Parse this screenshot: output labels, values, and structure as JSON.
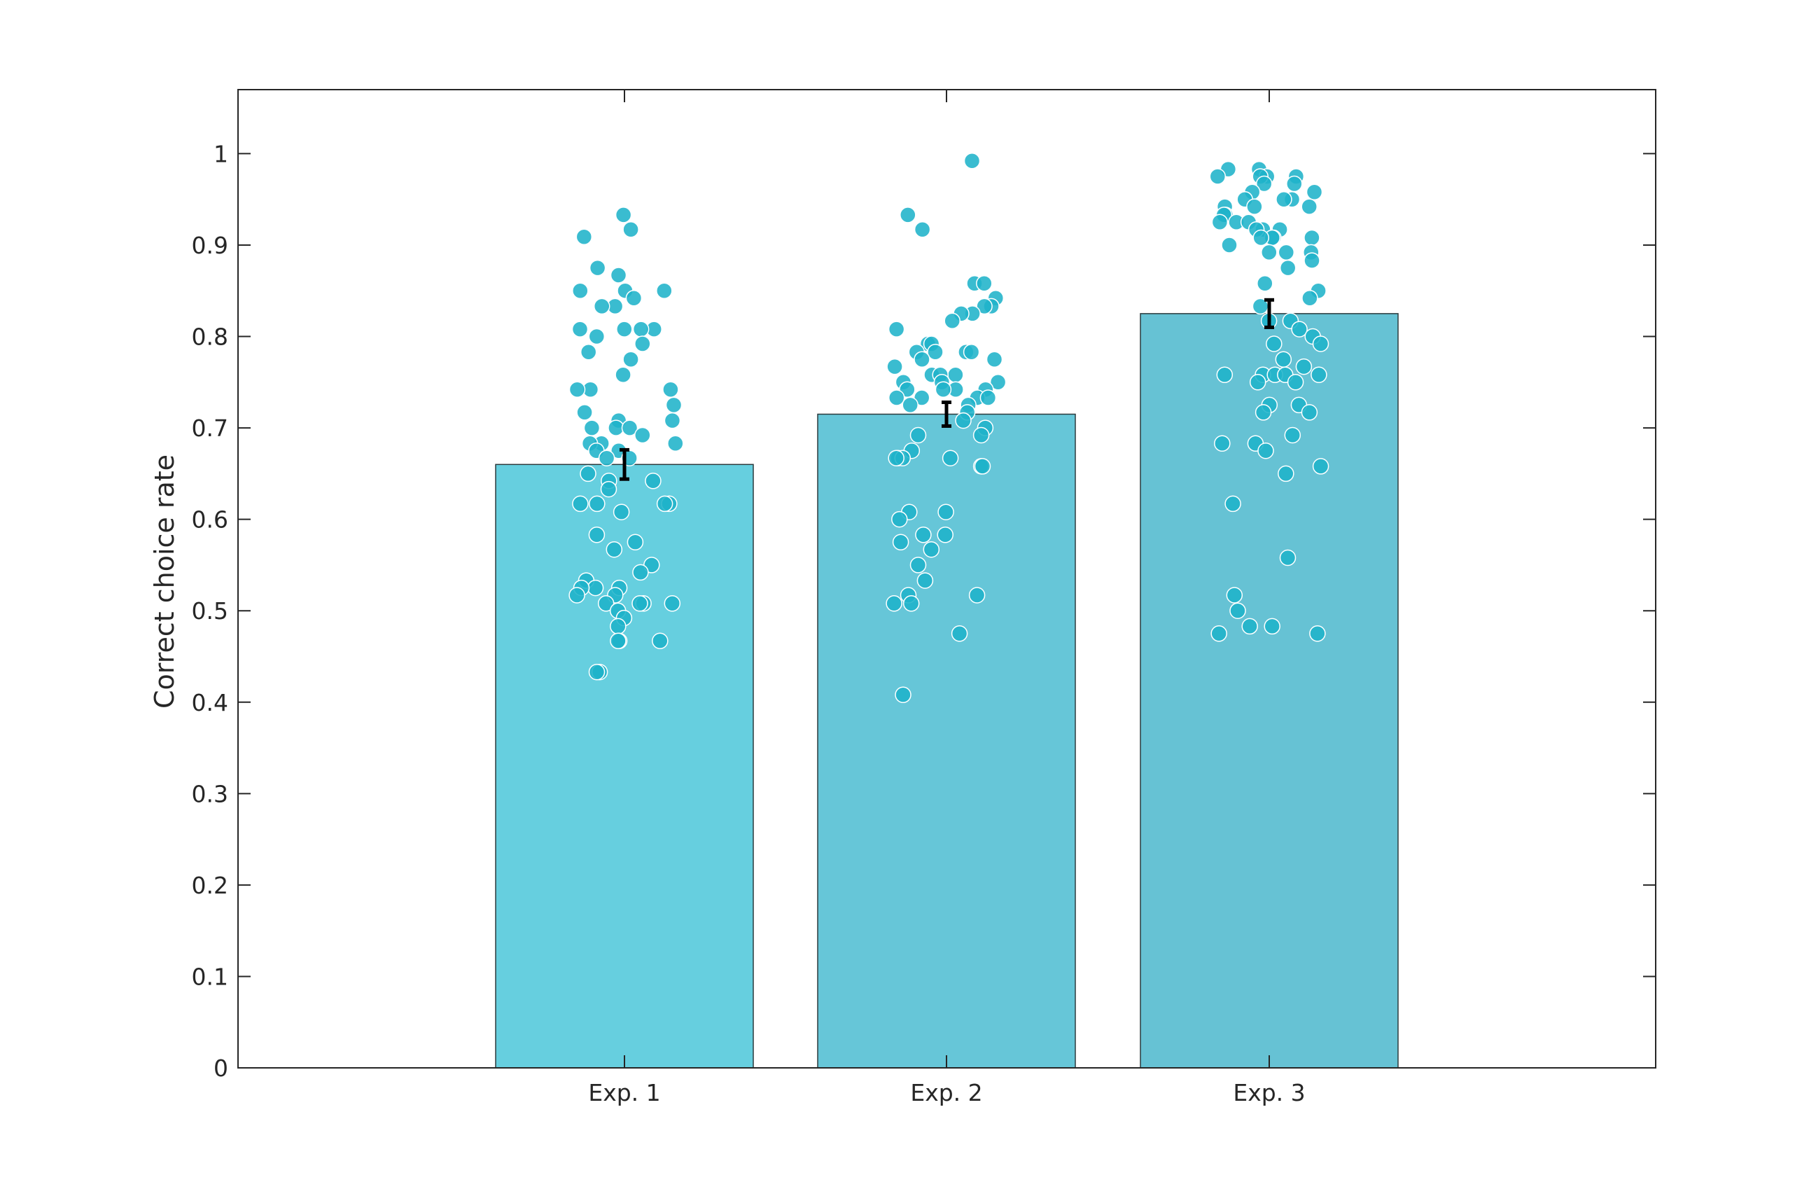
{
  "chart_data": {
    "type": "bar",
    "title": "",
    "xlabel": "",
    "ylabel": "Correct choice rate",
    "categories": [
      "Exp. 1",
      "Exp. 2",
      "Exp. 3"
    ],
    "values": [
      0.66,
      0.715,
      0.825
    ],
    "error": [
      0.016,
      0.013,
      0.015
    ],
    "ylim": [
      0,
      1.07
    ],
    "yticks": [
      "0",
      "0.1",
      "0.2",
      "0.3",
      "0.4",
      "0.5",
      "0.6",
      "0.7",
      "0.8",
      "0.9",
      "1"
    ],
    "grid": false,
    "legend": "none",
    "bar_colors": [
      "#66cfdf",
      "#66c6d8",
      "#66c2d4"
    ],
    "point_color": "#1fb3c9",
    "point_edge_color": "#ffffff",
    "error_bar_color": "#000000",
    "individual_points": [
      [
        0.933,
        0.917,
        0.909,
        0.875,
        0.867,
        0.85,
        0.85,
        0.85,
        0.842,
        0.833,
        0.833,
        0.808,
        0.808,
        0.808,
        0.808,
        0.8,
        0.792,
        0.783,
        0.775,
        0.758,
        0.742,
        0.742,
        0.742,
        0.725,
        0.717,
        0.708,
        0.708,
        0.7,
        0.7,
        0.7,
        0.692,
        0.683,
        0.683,
        0.683,
        0.675,
        0.675,
        0.667,
        0.667,
        0.65,
        0.642,
        0.642,
        0.633,
        0.617,
        0.617,
        0.617,
        0.617,
        0.608,
        0.583,
        0.575,
        0.567,
        0.55,
        0.542,
        0.533,
        0.525,
        0.525,
        0.525,
        0.517,
        0.517,
        0.508,
        0.508,
        0.508,
        0.508,
        0.5,
        0.492,
        0.483,
        0.467,
        0.467,
        0.467,
        0.433,
        0.433
      ],
      [
        0.992,
        0.933,
        0.917,
        0.858,
        0.858,
        0.842,
        0.833,
        0.833,
        0.825,
        0.825,
        0.817,
        0.808,
        0.792,
        0.792,
        0.783,
        0.783,
        0.783,
        0.783,
        0.775,
        0.775,
        0.767,
        0.758,
        0.758,
        0.758,
        0.75,
        0.75,
        0.75,
        0.742,
        0.742,
        0.742,
        0.742,
        0.733,
        0.733,
        0.733,
        0.733,
        0.725,
        0.725,
        0.717,
        0.708,
        0.7,
        0.692,
        0.692,
        0.675,
        0.667,
        0.667,
        0.667,
        0.667,
        0.658,
        0.658,
        0.608,
        0.608,
        0.6,
        0.583,
        0.583,
        0.575,
        0.567,
        0.55,
        0.533,
        0.517,
        0.517,
        0.508,
        0.508,
        0.475,
        0.408
      ],
      [
        0.983,
        0.983,
        0.975,
        0.975,
        0.975,
        0.975,
        0.967,
        0.967,
        0.958,
        0.958,
        0.95,
        0.95,
        0.95,
        0.942,
        0.942,
        0.942,
        0.933,
        0.933,
        0.925,
        0.925,
        0.925,
        0.917,
        0.917,
        0.917,
        0.908,
        0.908,
        0.908,
        0.908,
        0.9,
        0.892,
        0.892,
        0.892,
        0.883,
        0.875,
        0.858,
        0.85,
        0.842,
        0.833,
        0.817,
        0.817,
        0.808,
        0.8,
        0.792,
        0.792,
        0.775,
        0.767,
        0.758,
        0.758,
        0.758,
        0.758,
        0.758,
        0.75,
        0.75,
        0.725,
        0.725,
        0.717,
        0.717,
        0.692,
        0.683,
        0.683,
        0.675,
        0.658,
        0.65,
        0.617,
        0.558,
        0.517,
        0.5,
        0.483,
        0.483,
        0.475,
        0.475
      ]
    ]
  }
}
